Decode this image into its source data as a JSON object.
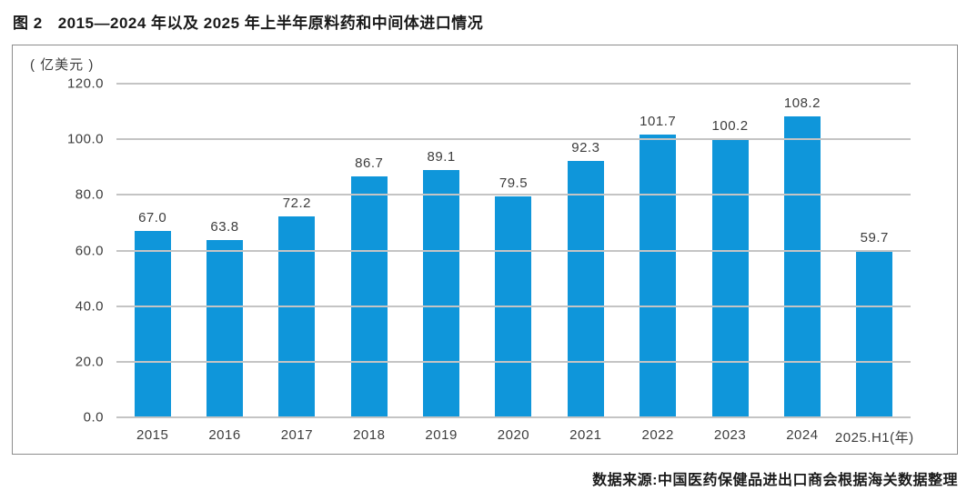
{
  "header": {
    "figure_label": "图 2",
    "title": "2015—2024 年以及 2025 年上半年原料药和中间体进口情况"
  },
  "chart_data": {
    "type": "bar",
    "title": "图 2 2015—2024 年以及 2025 年上半年原料药和中间体进口情况",
    "unit_label": "( 亿美元 )",
    "categories": [
      "2015",
      "2016",
      "2017",
      "2018",
      "2019",
      "2020",
      "2021",
      "2022",
      "2023",
      "2024",
      "2025.H1(年)"
    ],
    "values": [
      67.0,
      63.8,
      72.2,
      86.7,
      89.1,
      79.5,
      92.3,
      101.7,
      100.2,
      108.2,
      59.7
    ],
    "value_labels": [
      "67.0",
      "63.8",
      "72.2",
      "86.7",
      "89.1",
      "79.5",
      "92.3",
      "101.7",
      "100.2",
      "108.2",
      "59.7"
    ],
    "xlabel": "",
    "ylabel": "( 亿美元 )",
    "ylim": [
      0,
      120
    ],
    "ytick_step": 20,
    "ytick_labels": [
      "0.0",
      "20.0",
      "40.0",
      "60.0",
      "80.0",
      "100.0",
      "120.0"
    ],
    "grid": true,
    "legend_position": "none"
  },
  "footer": {
    "source": "数据来源:中国医药保健品进出口商会根据海关数据整理"
  },
  "colors": {
    "bar": "#0f96da",
    "gridline": "#c4c4c4",
    "panel_border": "#8c8c8c",
    "text": "#3d3d3d",
    "title_text": "#1a1a1a",
    "background": "#ffffff"
  }
}
